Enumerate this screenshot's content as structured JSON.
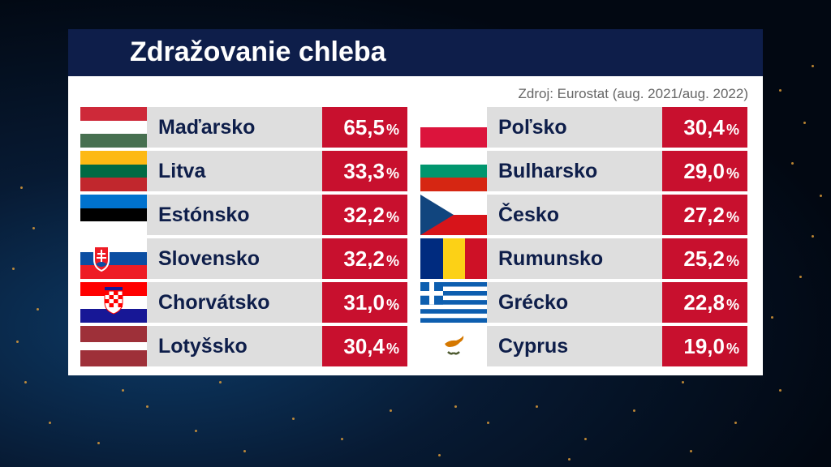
{
  "title": "Zdražovanie chleba",
  "source": "Zdroj: Eurostat (aug. 2021/aug. 2022)",
  "percent_sign": "%",
  "colors": {
    "title_bar": "#0e1e4a",
    "value_bg": "#c8102e",
    "name_bg": "#dedede",
    "name_text": "#0e1e4a"
  },
  "chart_data": {
    "type": "table",
    "title": "Zdražovanie chleba",
    "unit": "%",
    "columns": [
      [
        {
          "country": "Maďarsko",
          "value": "65,5",
          "flag": "hungary-flag"
        },
        {
          "country": "Litva",
          "value": "33,3",
          "flag": "lithuania-flag"
        },
        {
          "country": "Estónsko",
          "value": "32,2",
          "flag": "estonia-flag"
        },
        {
          "country": "Slovensko",
          "value": "32,2",
          "flag": "slovakia-flag"
        },
        {
          "country": "Chorvátsko",
          "value": "31,0",
          "flag": "croatia-flag"
        },
        {
          "country": "Lotyšsko",
          "value": "30,4",
          "flag": "latvia-flag"
        }
      ],
      [
        {
          "country": "Poľsko",
          "value": "30,4",
          "flag": "poland-flag"
        },
        {
          "country": "Bulharsko",
          "value": "29,0",
          "flag": "bulgaria-flag"
        },
        {
          "country": "Česko",
          "value": "27,2",
          "flag": "czechia-flag"
        },
        {
          "country": "Rumunsko",
          "value": "25,2",
          "flag": "romania-flag"
        },
        {
          "country": "Grécko",
          "value": "22,8",
          "flag": "greece-flag"
        },
        {
          "country": "Cyprus",
          "value": "19,0",
          "flag": "cyprus-flag"
        }
      ]
    ]
  }
}
